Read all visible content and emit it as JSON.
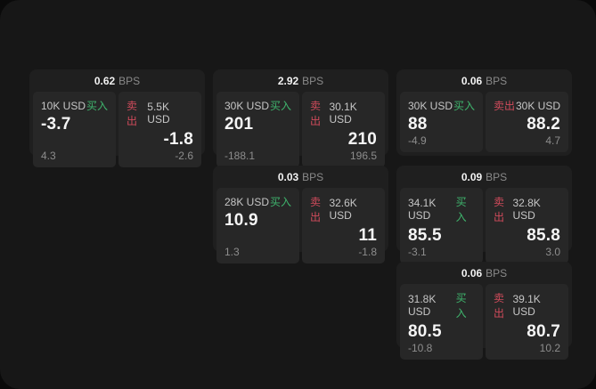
{
  "labels": {
    "bps_unit": "BPS",
    "buy": "买入",
    "sell": "卖出"
  },
  "colors": {
    "backdrop": "#0a0a0a",
    "window_bg": "#171717",
    "card_bg": "#1f1f1f",
    "panel_bg": "#272727",
    "buy_green": "#3fb56d",
    "sell_red": "#cf4b5b"
  },
  "cards": [
    {
      "bps": "0.62",
      "buy": {
        "size": "10K USD",
        "price": "-3.7",
        "delta": "4.3"
      },
      "sell": {
        "size": "5.5K USD",
        "price": "-1.8",
        "delta": "-2.6"
      }
    },
    {
      "bps": "2.92",
      "buy": {
        "size": "30K USD",
        "price": "201",
        "delta": "-188.1"
      },
      "sell": {
        "size": "30.1K USD",
        "price": "210",
        "delta": "196.5"
      }
    },
    {
      "bps": "0.06",
      "buy": {
        "size": "30K USD",
        "price": "88",
        "delta": "-4.9"
      },
      "sell": {
        "size": "30K USD",
        "price": "88.2",
        "delta": "4.7"
      }
    },
    {
      "bps": "0.03",
      "buy": {
        "size": "28K USD",
        "price": "10.9",
        "delta": "1.3"
      },
      "sell": {
        "size": "32.6K USD",
        "price": "11",
        "delta": "-1.8"
      }
    },
    {
      "bps": "0.09",
      "buy": {
        "size": "34.1K USD",
        "price": "85.5",
        "delta": "-3.1"
      },
      "sell": {
        "size": "32.8K USD",
        "price": "85.8",
        "delta": "3.0"
      }
    },
    {
      "bps": "0.06",
      "buy": {
        "size": "31.8K USD",
        "price": "80.5",
        "delta": "-10.8"
      },
      "sell": {
        "size": "39.1K USD",
        "price": "80.7",
        "delta": "10.2"
      }
    }
  ]
}
